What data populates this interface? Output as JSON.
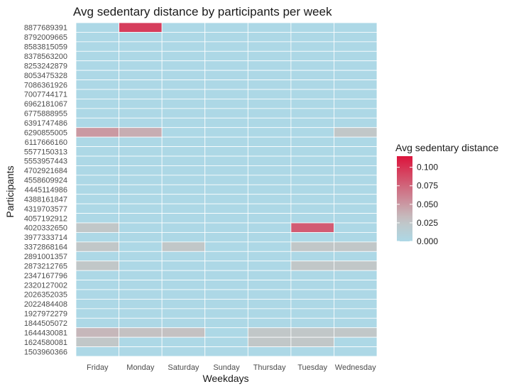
{
  "chart_data": {
    "type": "heatmap",
    "title": "Avg sedentary distance by participants per week",
    "xlabel": "Weekdays",
    "ylabel": "Participants",
    "x_categories": [
      "Friday",
      "Monday",
      "Saturday",
      "Sunday",
      "Thursday",
      "Tuesday",
      "Wednesday"
    ],
    "y_categories": [
      "8877689391",
      "8792009665",
      "8583815059",
      "8378563200",
      "8253242879",
      "8053475328",
      "7086361926",
      "7007744171",
      "6962181067",
      "6775888955",
      "6391747486",
      "6290855005",
      "6117666160",
      "5577150313",
      "5553957443",
      "4702921684",
      "4558609924",
      "4445114986",
      "4388161847",
      "4319703577",
      "4057192912",
      "4020332650",
      "3977333714",
      "3372868164",
      "2891001357",
      "2873212765",
      "2347167796",
      "2320127002",
      "2026352035",
      "2022484408",
      "1927972279",
      "1844505072",
      "1644430081",
      "1624580081",
      "1503960366"
    ],
    "values": [
      [
        0.0,
        0.095,
        0.0,
        0.0,
        0.0,
        0.0,
        0.0
      ],
      [
        0.0,
        0.0,
        0.0,
        0.0,
        0.0,
        0.0,
        0.0
      ],
      [
        0.0,
        0.0,
        0.0,
        0.0,
        0.0,
        0.0,
        0.0
      ],
      [
        0.0,
        0.0,
        0.0,
        0.0,
        0.0,
        0.0,
        0.0
      ],
      [
        0.0,
        0.0,
        0.0,
        0.0,
        0.0,
        0.0,
        0.0
      ],
      [
        0.0,
        0.0,
        0.0,
        0.0,
        0.0,
        0.0,
        0.0
      ],
      [
        0.0,
        0.0,
        0.0,
        0.0,
        0.0,
        0.0,
        0.0
      ],
      [
        0.0,
        0.0,
        0.0,
        0.0,
        0.0,
        0.0,
        0.0
      ],
      [
        0.0,
        0.0,
        0.0,
        0.0,
        0.0,
        0.0,
        0.0
      ],
      [
        0.0,
        0.0,
        0.0,
        0.0,
        0.0,
        0.0,
        0.0
      ],
      [
        0.0,
        0.0,
        0.0,
        0.0,
        0.0,
        0.0,
        0.0
      ],
      [
        0.05,
        0.04,
        0.0,
        0.0,
        0.0,
        0.0,
        0.025
      ],
      [
        0.0,
        0.0,
        0.0,
        0.0,
        0.0,
        0.0,
        0.0
      ],
      [
        0.0,
        0.0,
        0.0,
        0.0,
        0.0,
        0.0,
        0.0
      ],
      [
        0.0,
        0.0,
        0.0,
        0.0,
        0.0,
        0.0,
        0.0
      ],
      [
        0.0,
        0.0,
        0.0,
        0.0,
        0.0,
        0.0,
        0.0
      ],
      [
        0.0,
        0.0,
        0.0,
        0.0,
        0.0,
        0.0,
        0.0
      ],
      [
        0.0,
        0.0,
        0.0,
        0.0,
        0.0,
        0.0,
        0.0
      ],
      [
        0.0,
        0.0,
        0.0,
        0.0,
        0.0,
        0.0,
        0.0
      ],
      [
        0.0,
        0.0,
        0.0,
        0.0,
        0.0,
        0.0,
        0.0
      ],
      [
        0.0,
        0.0,
        0.0,
        0.0,
        0.0,
        0.0,
        0.0
      ],
      [
        0.025,
        0.0,
        0.0,
        0.0,
        0.0,
        0.08,
        0.0
      ],
      [
        0.0,
        0.0,
        0.0,
        0.0,
        0.0,
        0.0,
        0.0
      ],
      [
        0.025,
        0.0,
        0.025,
        0.0,
        0.0,
        0.025,
        0.025
      ],
      [
        0.0,
        0.0,
        0.0,
        0.0,
        0.0,
        0.0,
        0.0
      ],
      [
        0.025,
        0.0,
        0.0,
        0.0,
        0.0,
        0.025,
        0.025
      ],
      [
        0.0,
        0.0,
        0.0,
        0.0,
        0.0,
        0.0,
        0.0
      ],
      [
        0.0,
        0.0,
        0.0,
        0.0,
        0.0,
        0.0,
        0.0
      ],
      [
        0.0,
        0.0,
        0.0,
        0.0,
        0.0,
        0.0,
        0.0
      ],
      [
        0.0,
        0.0,
        0.0,
        0.0,
        0.0,
        0.0,
        0.0
      ],
      [
        0.0,
        0.0,
        0.0,
        0.0,
        0.0,
        0.0,
        0.0
      ],
      [
        0.0,
        0.0,
        0.0,
        0.0,
        0.0,
        0.0,
        0.0
      ],
      [
        0.035,
        0.03,
        0.03,
        0.0,
        0.025,
        0.025,
        0.025
      ],
      [
        0.025,
        0.0,
        0.0,
        0.0,
        0.025,
        0.025,
        0.0
      ],
      [
        0.0,
        0.0,
        0.0,
        0.0,
        0.0,
        0.0,
        0.0
      ]
    ],
    "legend": {
      "title": "Avg sedentary distance",
      "ticks": [
        0.0,
        0.025,
        0.05,
        0.075,
        0.1
      ],
      "tick_labels": [
        "0.000",
        "0.025",
        "0.050",
        "0.075",
        "0.100"
      ],
      "range": [
        0,
        0.115
      ],
      "placement": "right",
      "low_color": "#add8e6",
      "high_color": "#dc143c"
    },
    "grid": true
  }
}
